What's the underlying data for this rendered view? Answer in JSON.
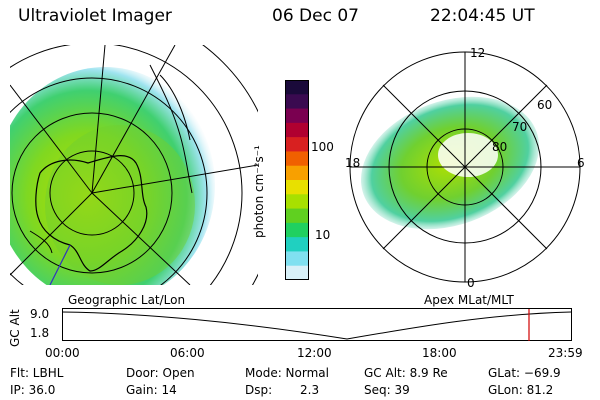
{
  "header": {
    "instrument": "Ultraviolet Imager",
    "date": "06 Dec 07",
    "time": "22:04:45 UT"
  },
  "colorbar": {
    "unit_label": "photon cm⁻²s⁻¹",
    "ticks": [
      "100",
      "10"
    ],
    "colors": [
      "#1a0a3a",
      "#3a0a50",
      "#7a0050",
      "#b00030",
      "#d82020",
      "#f06000",
      "#f8a000",
      "#e8e000",
      "#a8e000",
      "#60d020",
      "#20d060",
      "#20d0c0",
      "#80e0f0",
      "#d8f0f8"
    ]
  },
  "left_map": {
    "label": "Geographic Lat/Lon"
  },
  "right_map": {
    "label": "Apex MLat/MLT",
    "mlt_labels": {
      "top": "12",
      "left": "18",
      "right": "6",
      "bottom": "0"
    },
    "lat_labels": [
      "60",
      "70",
      "80"
    ]
  },
  "altitude_plot": {
    "ylabel": "GC Alt",
    "yticks": [
      "9.0",
      "1.8"
    ],
    "xticks": [
      "00:00",
      "06:00",
      "12:00",
      "18:00",
      "23:59"
    ],
    "marker_color": "#d00000"
  },
  "info": {
    "flt": "Flt: LBHL",
    "ip": "IP: 36.0",
    "door": "Door: Open",
    "gain": "Gain: 14",
    "mode": "Mode: Normal",
    "dsp_label": "Dsp:",
    "dsp_value": "2.3",
    "gc_alt": "GC Alt: 8.9 Re",
    "seq": "Seq: 39",
    "glat": "GLat: −69.9",
    "glon": "GLon: 81.2"
  }
}
